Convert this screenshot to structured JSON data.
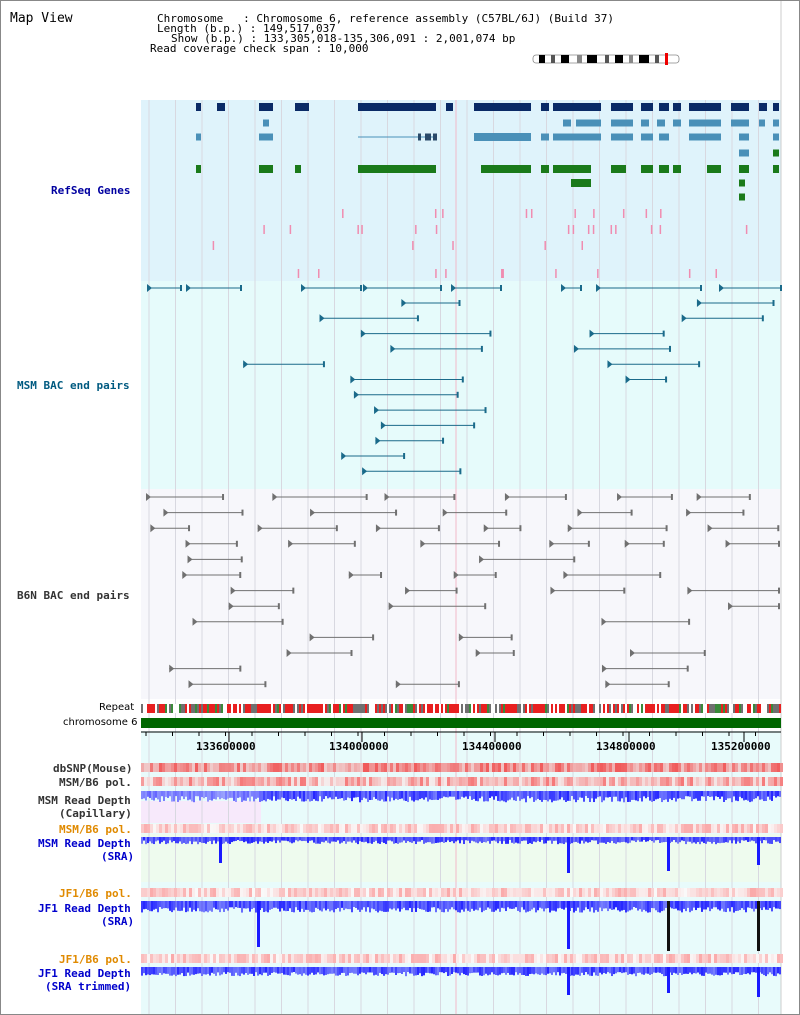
{
  "title": "Map View",
  "info": {
    "chromosome_line": "Chromosome   : Chromosome 6, reference assembly (C57BL/6J) (Build 37)",
    "length_line": "Length (b.p.) : 149,517,037",
    "show_line": "Show (b.p.) : 133,305,018-135,306,091 : 2,001,074 bp",
    "read_line": "Read coverage check span : 10,000"
  },
  "tracks": {
    "refseq": "RefSeq Genes",
    "msm_bac": "MSM BAC end pairs",
    "b6n_bac": "B6N BAC end pairs",
    "repeat": "Repeat",
    "chromosome": "chromosome 6",
    "dbsnp": "dbSNP(Mouse)",
    "msm_b6_pol_1": "MSM/B6 pol.",
    "msm_read_depth_cap_1": "MSM Read Depth",
    "msm_read_depth_cap_2": "(Capillary)",
    "msm_b6_pol_2": "MSM/B6 pol.",
    "msm_read_depth_sra_1": "MSM Read Depth",
    "msm_read_depth_sra_2": "(SRA)",
    "jf1_b6_pol_1": "JF1/B6 pol.",
    "jf1_read_depth_sra_1": "JF1 Read Depth",
    "jf1_read_depth_sra_2": "(SRA)",
    "jf1_b6_pol_2": "JF1/B6 pol.",
    "jf1_read_depth_trim_1": "JF1 Read Depth",
    "jf1_read_depth_trim_2": "(SRA trimmed)"
  },
  "axis": {
    "ticks": [
      "133600000",
      "134000000",
      "134400000",
      "134800000",
      "135200000"
    ]
  },
  "colors": {
    "refseq_bg": "#dff3fb",
    "msm_bg": "#e6fbfb",
    "b6n_bg": "#f7f7fb",
    "gene_navy": "#0a2a66",
    "gene_steel": "#4a90b8",
    "gene_green": "#1a7a1a",
    "chromosome_green": "#006600",
    "depth_blue": "#1a1aff"
  }
}
